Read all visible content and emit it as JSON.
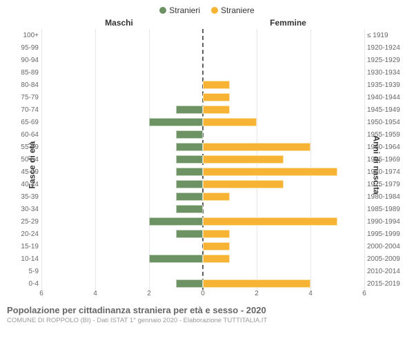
{
  "chart": {
    "type": "population-pyramid",
    "background_color": "#ffffff",
    "grid_color": "#e6e6e6",
    "centerline_color": "#606060",
    "legend": [
      {
        "label": "Stranieri",
        "color": "#6d9365"
      },
      {
        "label": "Straniere",
        "color": "#f7b434"
      }
    ],
    "columns": {
      "left": "Maschi",
      "right": "Femmine"
    },
    "y_title_left": "Fasce di età",
    "y_title_right": "Anni di nascita",
    "xmax": 6,
    "xticks": [
      6,
      4,
      2,
      0,
      2,
      4,
      6
    ],
    "bar_height_pct": 66,
    "label_fontsize": 10,
    "axis_label_fontsize": 12,
    "rows": [
      {
        "age": "100+",
        "birth": "≤ 1919",
        "m": 0,
        "f": 0
      },
      {
        "age": "95-99",
        "birth": "1920-1924",
        "m": 0,
        "f": 0
      },
      {
        "age": "90-94",
        "birth": "1925-1929",
        "m": 0,
        "f": 0
      },
      {
        "age": "85-89",
        "birth": "1930-1934",
        "m": 0,
        "f": 0
      },
      {
        "age": "80-84",
        "birth": "1935-1939",
        "m": 0,
        "f": 1
      },
      {
        "age": "75-79",
        "birth": "1940-1944",
        "m": 0,
        "f": 1
      },
      {
        "age": "70-74",
        "birth": "1945-1949",
        "m": 1,
        "f": 1
      },
      {
        "age": "65-69",
        "birth": "1950-1954",
        "m": 2,
        "f": 2
      },
      {
        "age": "60-64",
        "birth": "1955-1959",
        "m": 1,
        "f": 0
      },
      {
        "age": "55-59",
        "birth": "1960-1964",
        "m": 1,
        "f": 4
      },
      {
        "age": "50-54",
        "birth": "1965-1969",
        "m": 1,
        "f": 3
      },
      {
        "age": "45-49",
        "birth": "1970-1974",
        "m": 1,
        "f": 5
      },
      {
        "age": "40-44",
        "birth": "1975-1979",
        "m": 1,
        "f": 3
      },
      {
        "age": "35-39",
        "birth": "1980-1984",
        "m": 1,
        "f": 1
      },
      {
        "age": "30-34",
        "birth": "1985-1989",
        "m": 1,
        "f": 0
      },
      {
        "age": "25-29",
        "birth": "1990-1994",
        "m": 2,
        "f": 5
      },
      {
        "age": "20-24",
        "birth": "1995-1999",
        "m": 1,
        "f": 1
      },
      {
        "age": "15-19",
        "birth": "2000-2004",
        "m": 0,
        "f": 1
      },
      {
        "age": "10-14",
        "birth": "2005-2009",
        "m": 2,
        "f": 1
      },
      {
        "age": "5-9",
        "birth": "2010-2014",
        "m": 0,
        "f": 0
      },
      {
        "age": "0-4",
        "birth": "2015-2019",
        "m": 1,
        "f": 4
      }
    ],
    "colors": {
      "male": "#6d9365",
      "female": "#f7b434"
    }
  },
  "footer": {
    "title": "Popolazione per cittadinanza straniera per età e sesso - 2020",
    "subtitle": "COMUNE DI ROPPOLO (BI) - Dati ISTAT 1° gennaio 2020 - Elaborazione TUTTITALIA.IT"
  }
}
